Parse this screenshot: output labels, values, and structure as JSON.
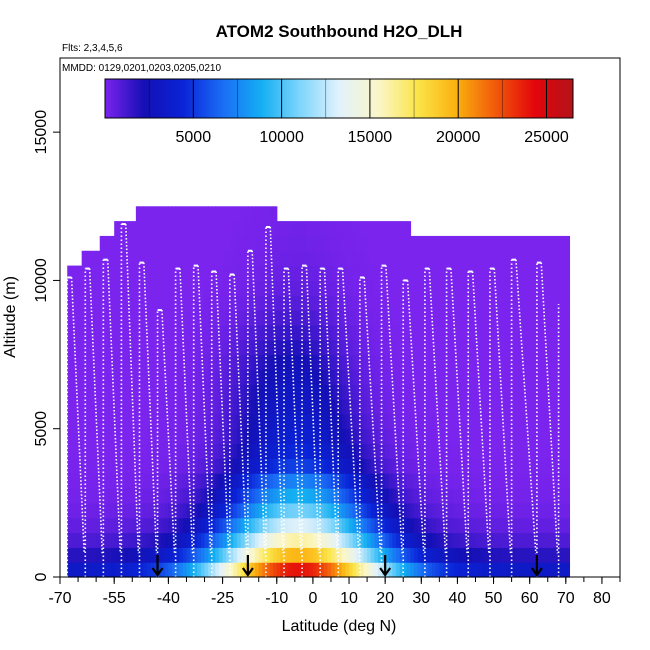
{
  "chart_data": {
    "type": "heatmap",
    "title": "ATOM2 Southbound H2O_DLH",
    "subtitle_flights": "Flts: 2,3,4,5,6",
    "subtitle_dates": "MMDD: 0129,0201,0203,0205,0210",
    "xlabel": "Latitude (deg N)",
    "ylabel": "Altitude (m)",
    "xlim": [
      -70,
      85
    ],
    "ylim": [
      0,
      17500
    ],
    "x_ticks": [
      -70,
      -55,
      -40,
      -25,
      -10,
      0,
      10,
      20,
      30,
      40,
      50,
      60,
      70,
      80
    ],
    "y_ticks": [
      0,
      5000,
      10000,
      15000
    ],
    "colorbar": {
      "min": 0,
      "max": 26500,
      "ticks": [
        5000,
        10000,
        15000,
        20000,
        25000
      ],
      "colors": [
        "#7b24ee",
        "#1410b5",
        "#0a23d6",
        "#1a6cf5",
        "#13aef2",
        "#7fd5fb",
        "#e2f2fb",
        "#fbf6c8",
        "#fbe54a",
        "#fbb10f",
        "#f25a0b",
        "#e4060b",
        "#b1131a"
      ]
    },
    "arrow_latitudes": [
      -43,
      -18,
      20,
      62
    ],
    "profiles": [
      {
        "lat": -68,
        "top": 10100
      },
      {
        "lat": -63,
        "top": 10400
      },
      {
        "lat": -58,
        "top": 10700
      },
      {
        "lat": -53,
        "top": 11900
      },
      {
        "lat": -48,
        "top": 10600
      },
      {
        "lat": -43,
        "top": 9000
      },
      {
        "lat": -38,
        "top": 10400
      },
      {
        "lat": -33,
        "top": 10500
      },
      {
        "lat": -28,
        "top": 10300
      },
      {
        "lat": -23,
        "top": 10200
      },
      {
        "lat": -18,
        "top": 11000
      },
      {
        "lat": -13,
        "top": 11800
      },
      {
        "lat": -8,
        "top": 10400
      },
      {
        "lat": -3,
        "top": 10500
      },
      {
        "lat": 2,
        "top": 10400
      },
      {
        "lat": 7,
        "top": 10400
      },
      {
        "lat": 13,
        "top": 10100
      },
      {
        "lat": 19,
        "top": 10500
      },
      {
        "lat": 25,
        "top": 10000
      },
      {
        "lat": 31,
        "top": 10400
      },
      {
        "lat": 37,
        "top": 10400
      },
      {
        "lat": 43,
        "top": 10300
      },
      {
        "lat": 49,
        "top": 10400
      },
      {
        "lat": 55,
        "top": 10700
      },
      {
        "lat": 62,
        "top": 10600
      },
      {
        "lat": 68,
        "top": 9200
      }
    ],
    "curtain_top": [
      {
        "from": -68,
        "to": -64,
        "top": 10500
      },
      {
        "from": -64,
        "to": -59,
        "top": 11000
      },
      {
        "from": -59,
        "to": -55,
        "top": 11500
      },
      {
        "from": -55,
        "to": -49,
        "top": 12000
      },
      {
        "from": -49,
        "to": -10,
        "top": 12400
      },
      {
        "from": -10,
        "to": 27,
        "top": 12000
      },
      {
        "from": 27,
        "to": 71,
        "top": 11500
      }
    ]
  }
}
